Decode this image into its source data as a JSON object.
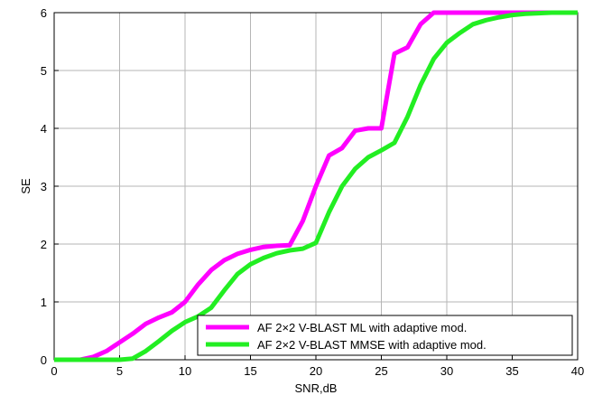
{
  "chart_data": {
    "type": "line",
    "xlabel": "SNR,dB",
    "ylabel": "SE",
    "xlim": [
      0,
      40
    ],
    "ylim": [
      0,
      6
    ],
    "xticks": [
      "0",
      "5",
      "10",
      "15",
      "20",
      "25",
      "30",
      "35",
      "40"
    ],
    "yticks": [
      "0",
      "1",
      "2",
      "3",
      "4",
      "5",
      "6"
    ],
    "grid": true,
    "legend_position": "bottom-right",
    "series": [
      {
        "name": "AF 2×2 V-BLAST ML with adaptive mod.",
        "color": "#ff00ff",
        "x": [
          0,
          1,
          2,
          3,
          4,
          5,
          6,
          7,
          8,
          9,
          10,
          11,
          12,
          13,
          14,
          15,
          16,
          17,
          18,
          19,
          20,
          21,
          22,
          23,
          24,
          25,
          26,
          27,
          28,
          29,
          30,
          31,
          32,
          33,
          34,
          35,
          36,
          37,
          38,
          39,
          40
        ],
        "y": [
          0,
          0,
          0,
          0.05,
          0.15,
          0.3,
          0.45,
          0.62,
          0.73,
          0.82,
          1.0,
          1.3,
          1.55,
          1.72,
          1.83,
          1.9,
          1.95,
          1.97,
          1.98,
          2.4,
          3.0,
          3.53,
          3.66,
          3.96,
          4.0,
          4.0,
          5.29,
          5.4,
          5.8,
          6.0,
          6.0,
          6.0,
          6.0,
          6.0,
          6.0,
          6.0,
          6.0,
          6.0,
          6.0,
          6.0,
          6.0
        ]
      },
      {
        "name": "AF 2×2 V-BLAST MMSE with adaptive mod.",
        "color": "#22ee22",
        "x": [
          0,
          1,
          2,
          3,
          4,
          5,
          6,
          7,
          8,
          9,
          10,
          11,
          12,
          13,
          14,
          15,
          16,
          17,
          18,
          19,
          20,
          21,
          22,
          23,
          24,
          25,
          26,
          27,
          28,
          29,
          30,
          31,
          32,
          33,
          34,
          35,
          36,
          37,
          38,
          39,
          40
        ],
        "y": [
          0,
          0,
          0,
          0,
          0,
          0,
          0.02,
          0.15,
          0.32,
          0.5,
          0.65,
          0.75,
          0.9,
          1.2,
          1.48,
          1.65,
          1.76,
          1.84,
          1.89,
          1.92,
          2.02,
          2.55,
          3.0,
          3.3,
          3.5,
          3.62,
          3.75,
          4.2,
          4.75,
          5.2,
          5.48,
          5.65,
          5.8,
          5.87,
          5.92,
          5.96,
          5.98,
          5.99,
          6.0,
          6.0,
          6.0
        ]
      }
    ]
  }
}
